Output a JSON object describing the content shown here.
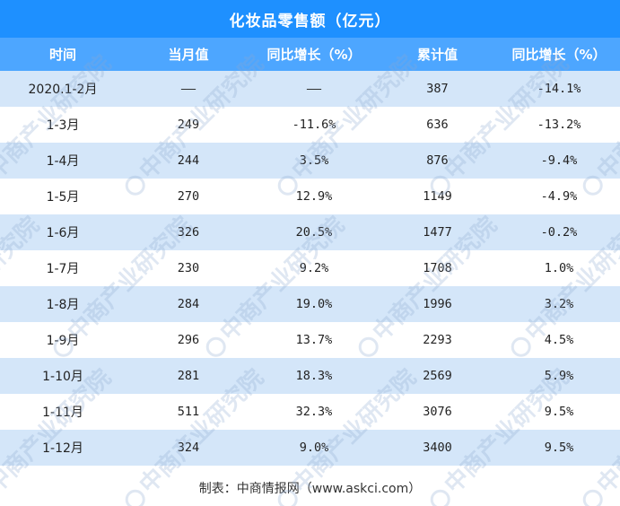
{
  "title": "化妆品零售额（亿元）",
  "headers": [
    "时间",
    "当月值",
    "同比增长（%）",
    "累计值",
    "同比增长（%）"
  ],
  "rows": [
    [
      "2020.1-2月",
      "——",
      "——",
      "387",
      "-14.1%"
    ],
    [
      "1-3月",
      "249",
      "-11.6%",
      "636",
      "-13.2%"
    ],
    [
      "1-4月",
      "244",
      "3.5%",
      "876",
      "-9.4%"
    ],
    [
      "1-5月",
      "270",
      "12.9%",
      "1149",
      "-4.9%"
    ],
    [
      "1-6月",
      "326",
      "20.5%",
      "1477",
      "-0.2%"
    ],
    [
      "1-7月",
      "230",
      "9.2%",
      "1708",
      "1.0%"
    ],
    [
      "1-8月",
      "284",
      "19.0%",
      "1996",
      "3.2%"
    ],
    [
      "1-9月",
      "296",
      "13.7%",
      "2293",
      "4.5%"
    ],
    [
      "1-10月",
      "281",
      "18.3%",
      "2569",
      "5.9%"
    ],
    [
      "1-11月",
      "511",
      "32.3%",
      "3076",
      "9.5%"
    ],
    [
      "1-12月",
      "324",
      "9.0%",
      "3400",
      "9.5%"
    ]
  ],
  "footer": "制表：中商情报网（www.askci.com）",
  "watermark": "中商产业研究院",
  "colors": {
    "title_bg": "#1e90ff",
    "header_bg": "#4da6ff",
    "stripe": "#d4e6f9"
  }
}
